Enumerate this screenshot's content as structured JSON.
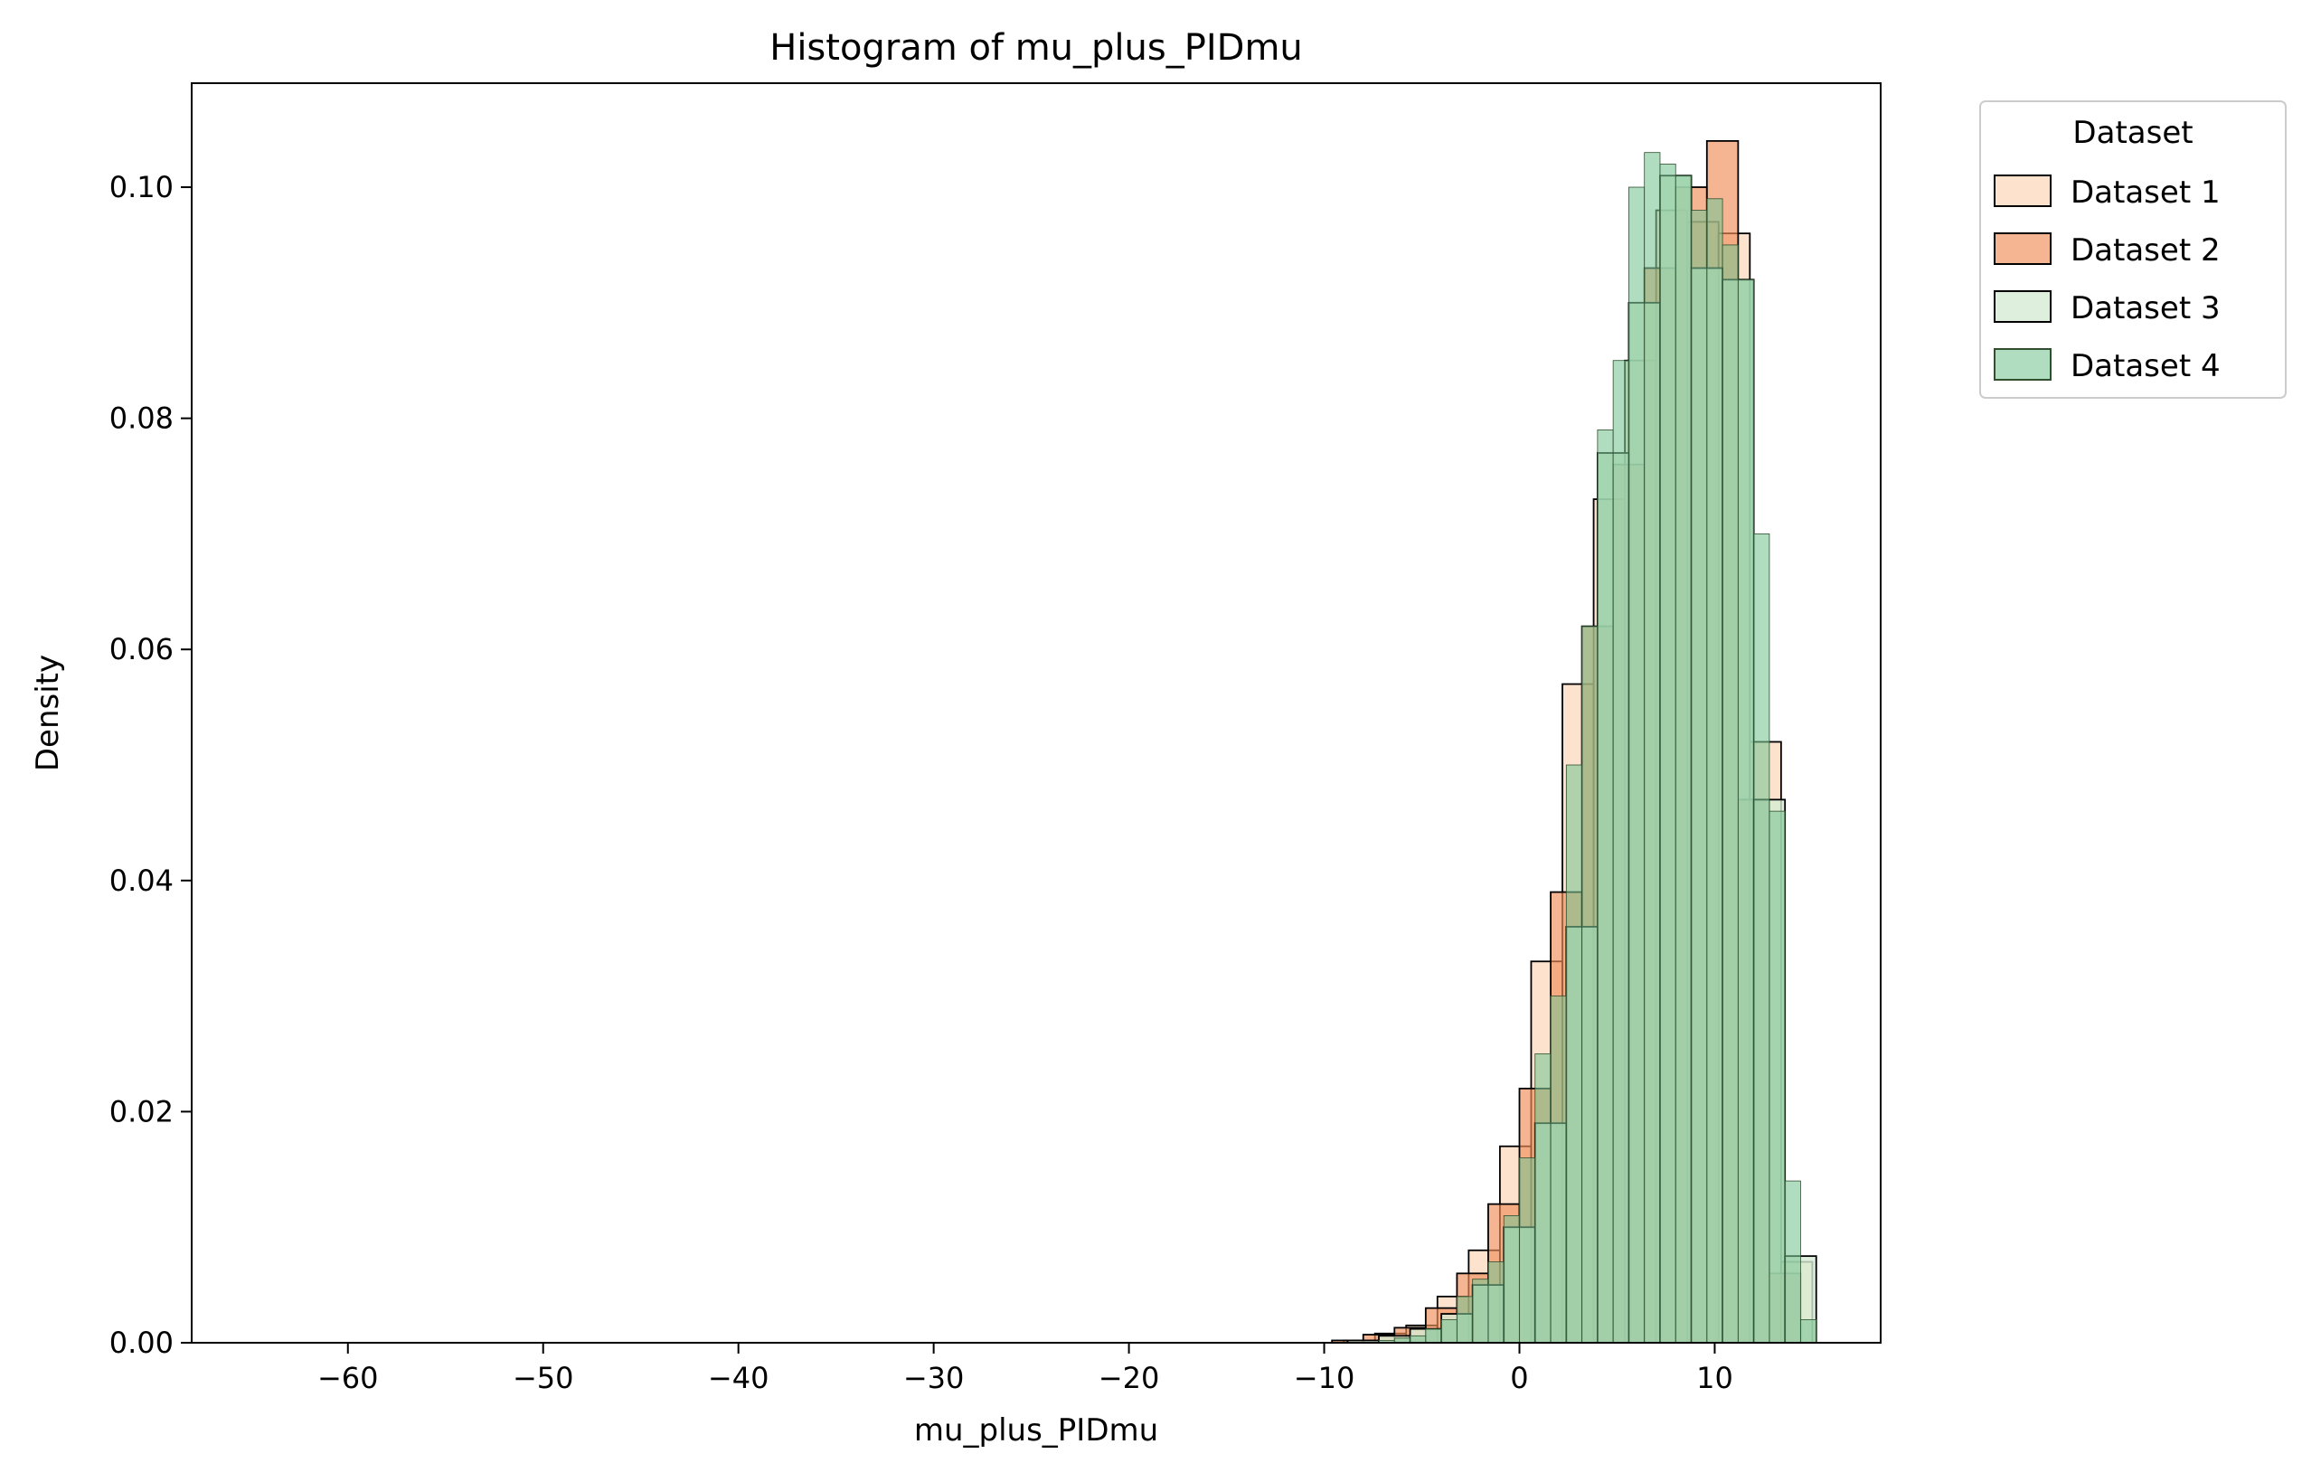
{
  "chart_data": {
    "type": "histogram",
    "title": "Histogram of mu_plus_PIDmu",
    "xlabel": "mu_plus_PIDmu",
    "ylabel": "Density",
    "xlim": [
      -68,
      18.5
    ],
    "ylim": [
      0,
      0.109
    ],
    "xticks": [
      -60,
      -50,
      -40,
      -30,
      -20,
      -10,
      0,
      10
    ],
    "xtick_labels": [
      "−60",
      "−50",
      "−40",
      "−30",
      "−20",
      "−10",
      "0",
      "10"
    ],
    "yticks": [
      0.0,
      0.02,
      0.04,
      0.06,
      0.08,
      0.1
    ],
    "ytick_labels": [
      "0.00",
      "0.02",
      "0.04",
      "0.06",
      "0.08",
      "0.10"
    ],
    "legend": {
      "title": "Dataset",
      "placement": "outside-top-right"
    },
    "series": [
      {
        "name": "Dataset 1",
        "color": "#fcd9bd",
        "alpha": 0.75,
        "edge": "#000000",
        "bin_width": 1.6,
        "bins": [
          [
            -65,
            0
          ],
          [
            -9.0,
            0.0002
          ],
          [
            -7.4,
            0.0008
          ],
          [
            -5.8,
            0.0015
          ],
          [
            -4.2,
            0.004
          ],
          [
            -2.6,
            0.008
          ],
          [
            -1.0,
            0.017
          ],
          [
            0.6,
            0.033
          ],
          [
            2.2,
            0.057
          ],
          [
            3.8,
            0.073
          ],
          [
            5.4,
            0.085
          ],
          [
            7.0,
            0.098
          ],
          [
            8.6,
            0.097
          ],
          [
            10.2,
            0.096
          ],
          [
            11.8,
            0.052
          ],
          [
            13.4,
            0.007
          ]
        ]
      },
      {
        "name": "Dataset 2",
        "color": "#f08e58",
        "alpha": 0.65,
        "edge": "#000000",
        "bin_width": 1.6,
        "bins": [
          [
            -65,
            0
          ],
          [
            -9.6,
            0.0002
          ],
          [
            -8.0,
            0.0007
          ],
          [
            -6.4,
            0.0013
          ],
          [
            -4.8,
            0.003
          ],
          [
            -3.2,
            0.006
          ],
          [
            -1.6,
            0.012
          ],
          [
            0.0,
            0.022
          ],
          [
            1.6,
            0.039
          ],
          [
            3.2,
            0.062
          ],
          [
            4.8,
            0.076
          ],
          [
            6.4,
            0.093
          ],
          [
            8.0,
            0.1
          ],
          [
            9.6,
            0.104
          ],
          [
            11.2,
            0.047
          ],
          [
            12.8,
            0.006
          ]
        ]
      },
      {
        "name": "Dataset 3",
        "color": "#d6ecd4",
        "alpha": 0.8,
        "edge": "#000000",
        "bin_width": 1.6,
        "bins": [
          [
            -65,
            0
          ],
          [
            -8.8,
            0.0002
          ],
          [
            -7.2,
            0.0006
          ],
          [
            -5.6,
            0.0012
          ],
          [
            -4.0,
            0.0025
          ],
          [
            -2.4,
            0.005
          ],
          [
            -0.8,
            0.01
          ],
          [
            0.8,
            0.019
          ],
          [
            2.4,
            0.036
          ],
          [
            4.0,
            0.077
          ],
          [
            5.6,
            0.09
          ],
          [
            7.2,
            0.101
          ],
          [
            8.8,
            0.093
          ],
          [
            10.4,
            0.092
          ],
          [
            12.0,
            0.047
          ],
          [
            13.6,
            0.0075
          ]
        ]
      },
      {
        "name": "Dataset 4",
        "color": "#7cc494",
        "alpha": 0.6,
        "edge": "#2f4f2f",
        "bin_width": 0.8,
        "bins": [
          [
            -65,
            0
          ],
          [
            -7.2,
            0.0002
          ],
          [
            -6.4,
            0.0004
          ],
          [
            -5.6,
            0.0006
          ],
          [
            -4.8,
            0.0012
          ],
          [
            -4.0,
            0.002
          ],
          [
            -3.2,
            0.004
          ],
          [
            -2.4,
            0.0055
          ],
          [
            -1.6,
            0.007
          ],
          [
            -0.8,
            0.011
          ],
          [
            0.0,
            0.016
          ],
          [
            0.8,
            0.025
          ],
          [
            1.6,
            0.03
          ],
          [
            2.4,
            0.05
          ],
          [
            3.2,
            0.062
          ],
          [
            4.0,
            0.079
          ],
          [
            4.8,
            0.085
          ],
          [
            5.6,
            0.1
          ],
          [
            6.4,
            0.103
          ],
          [
            7.2,
            0.102
          ],
          [
            8.0,
            0.101
          ],
          [
            8.8,
            0.098
          ],
          [
            9.6,
            0.099
          ],
          [
            10.4,
            0.095
          ],
          [
            11.2,
            0.092
          ],
          [
            12.0,
            0.07
          ],
          [
            12.8,
            0.046
          ],
          [
            13.6,
            0.014
          ],
          [
            14.4,
            0.002
          ]
        ]
      }
    ]
  }
}
